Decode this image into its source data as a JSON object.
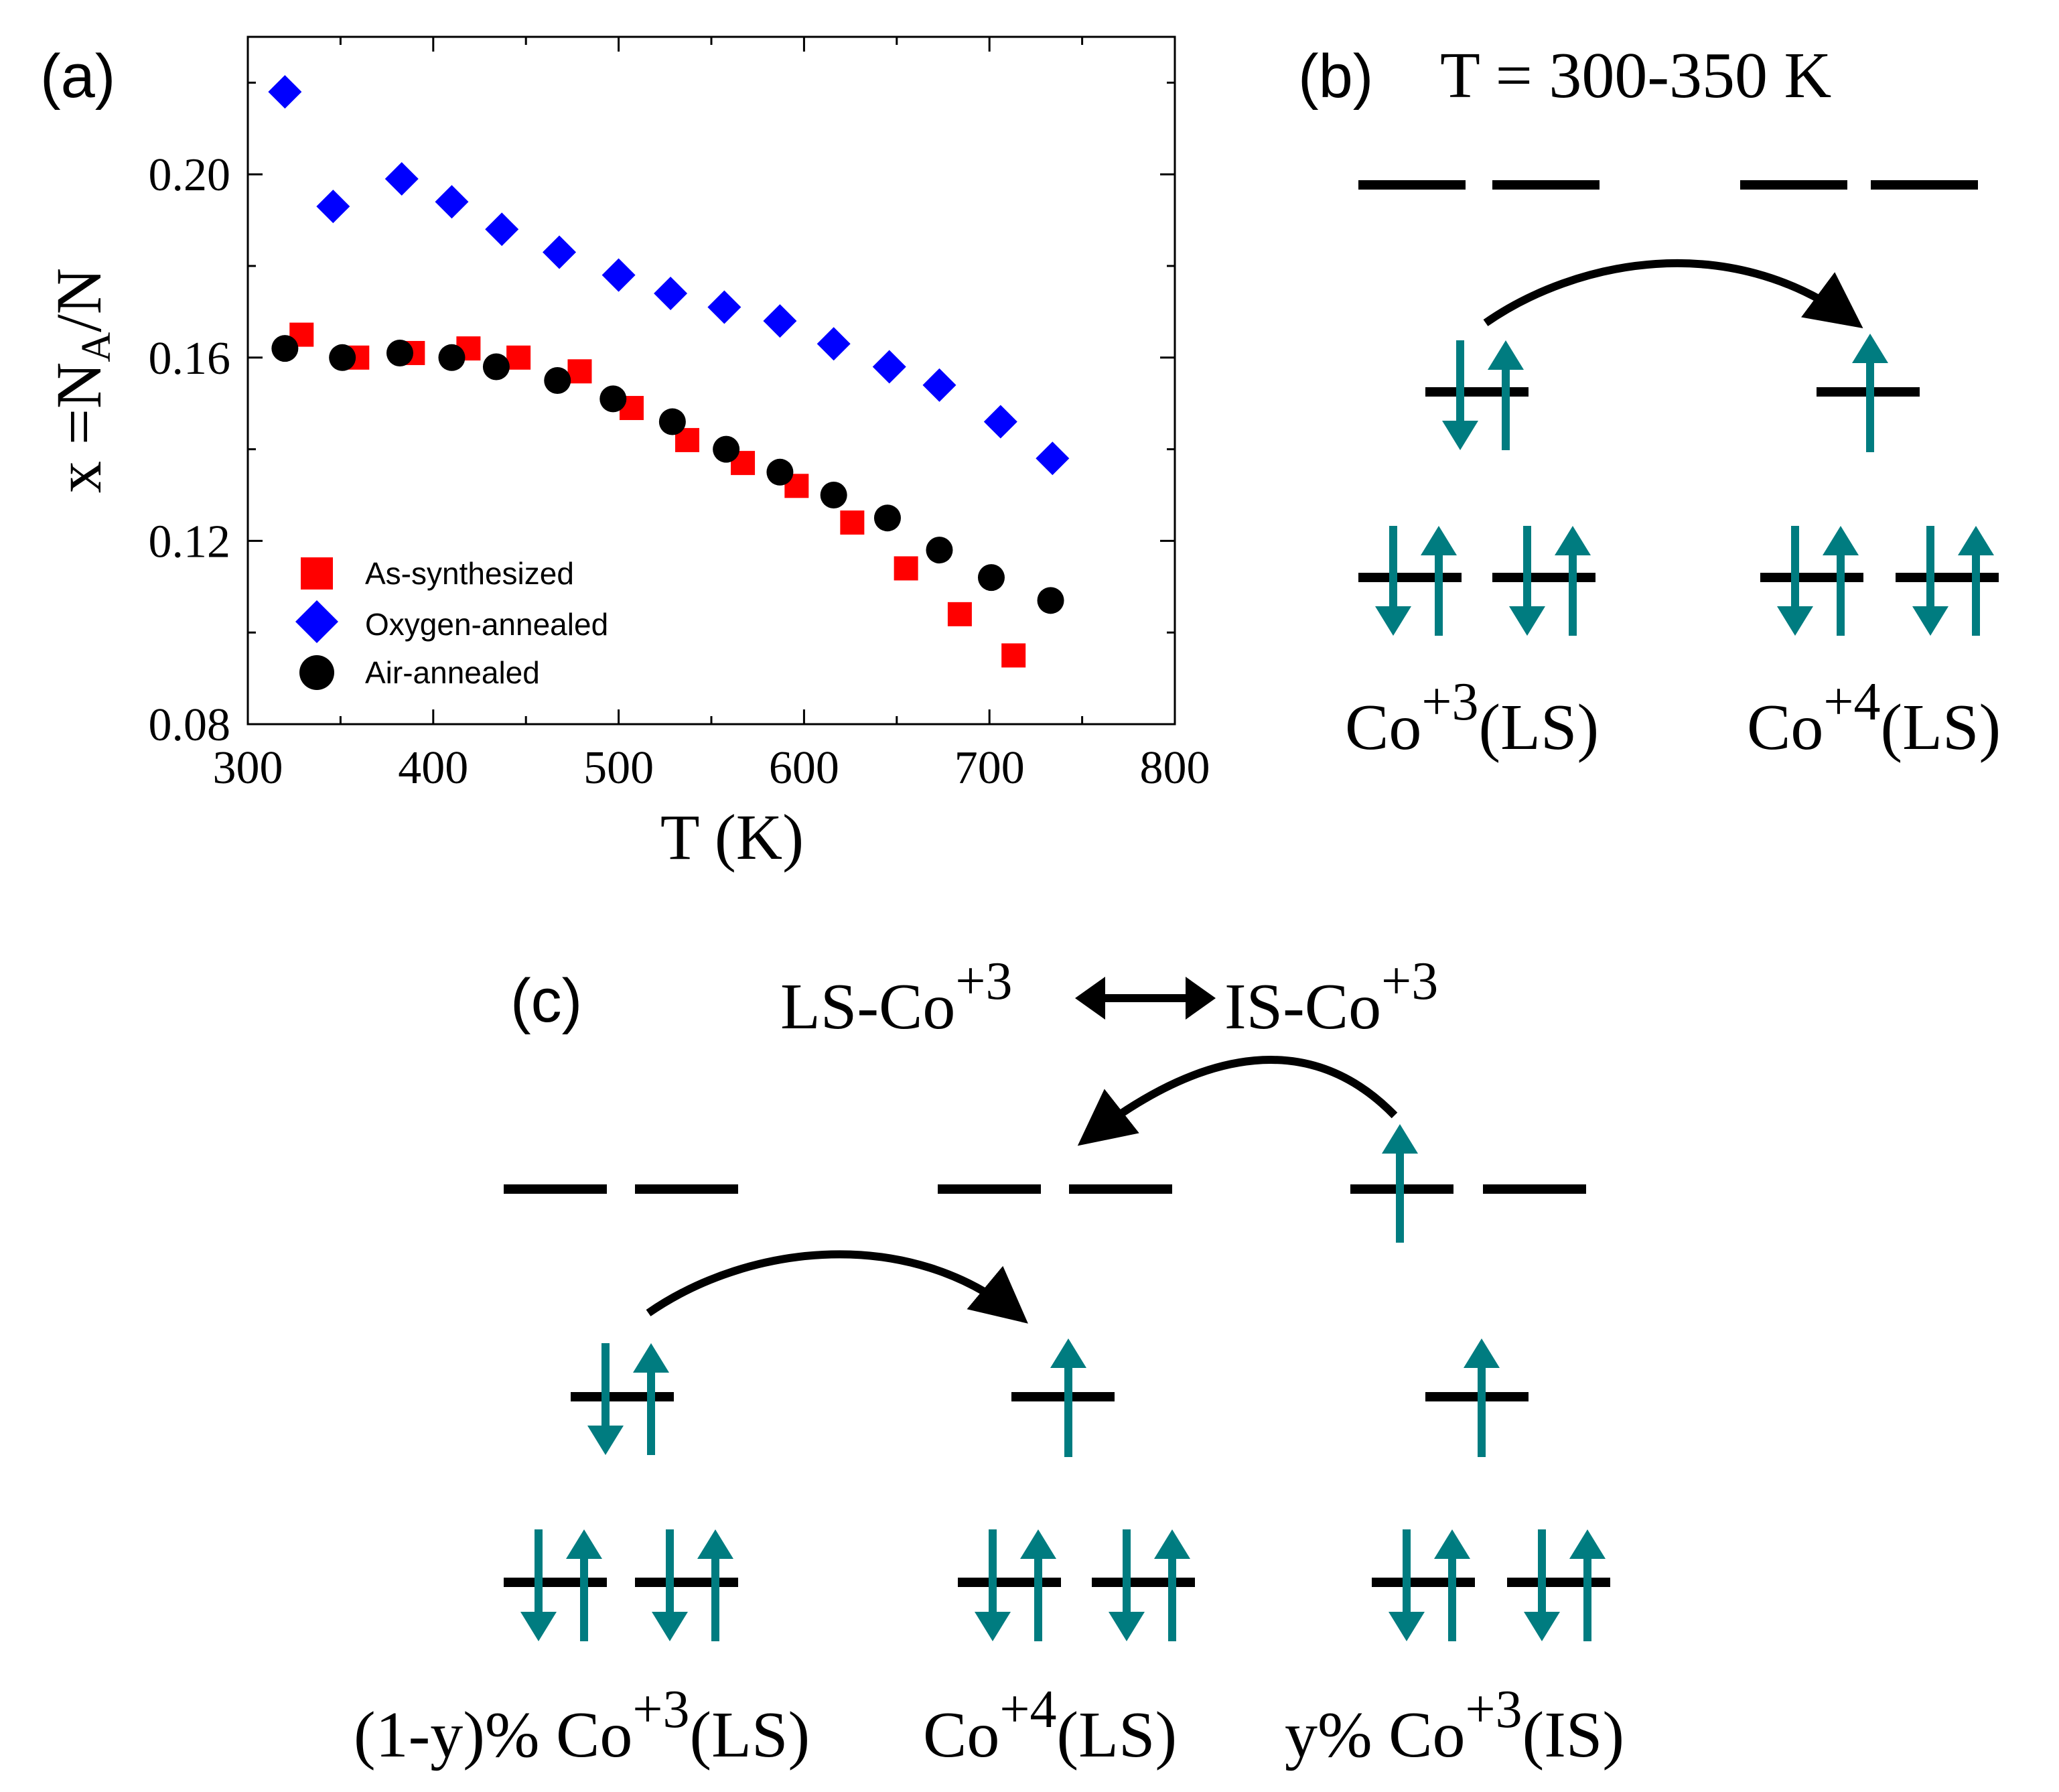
{
  "panels": {
    "a": {
      "label": "(a)"
    },
    "b": {
      "label": "(b)",
      "title": "T = 300-350 K"
    },
    "c": {
      "label": "(c)"
    }
  },
  "chart_data": {
    "type": "scatter",
    "xlabel": "T (K)",
    "ylabel_main": "x =N",
    "ylabel_sub": "A",
    "ylabel_tail": "/N",
    "xlim": [
      300,
      800
    ],
    "ylim": [
      0.08,
      0.23
    ],
    "xticks": [
      300,
      400,
      500,
      600,
      700,
      800
    ],
    "xtick_labels": [
      "300",
      "400",
      "500",
      "600",
      "700",
      "800"
    ],
    "yticks": [
      0.08,
      0.12,
      0.16,
      0.2
    ],
    "ytick_labels": [
      "0.08",
      "0.12",
      "0.16",
      "0.20"
    ],
    "legend_position": "bottom-left",
    "series": [
      {
        "name": "As-synthesized",
        "marker": "square",
        "color": "#ff0000",
        "x": [
          329,
          359,
          389,
          419,
          446,
          479,
          507,
          537,
          567,
          596,
          626,
          655,
          684,
          713
        ],
        "y": [
          0.165,
          0.16,
          0.161,
          0.162,
          0.16,
          0.157,
          0.149,
          0.142,
          0.137,
          0.132,
          0.124,
          0.114,
          0.104,
          0.095
        ]
      },
      {
        "name": "Oxygen-annealed",
        "marker": "diamond",
        "color": "#0000ff",
        "x": [
          320,
          346,
          383,
          410,
          437,
          468,
          500,
          528,
          557,
          587,
          616,
          646,
          673,
          706,
          734
        ],
        "y": [
          0.218,
          0.193,
          0.199,
          0.194,
          0.188,
          0.183,
          0.178,
          0.174,
          0.171,
          0.168,
          0.163,
          0.158,
          0.154,
          0.146,
          0.138
        ]
      },
      {
        "name": "Air-annealed",
        "marker": "circle",
        "color": "#000000",
        "x": [
          320,
          351,
          382,
          410,
          434,
          467,
          497,
          529,
          558,
          587,
          616,
          645,
          673,
          701,
          733
        ],
        "y": [
          0.162,
          0.16,
          0.161,
          0.16,
          0.158,
          0.155,
          0.151,
          0.146,
          0.14,
          0.135,
          0.13,
          0.125,
          0.118,
          0.112,
          0.107
        ]
      }
    ]
  },
  "diagram_b": {
    "left_label": {
      "base": "Co",
      "sup": "+3",
      "tail": "(LS)"
    },
    "right_label": {
      "base": "Co",
      "sup": "+4",
      "tail": "(LS)"
    }
  },
  "diagram_c": {
    "equilibrium": {
      "left_base": "LS-Co",
      "left_sup": "+3",
      "right_base": "IS-Co",
      "right_sup": "+3"
    },
    "label_1": {
      "base": "(1-y)% Co",
      "sup": "+3",
      "tail": "(LS)"
    },
    "label_2": {
      "base": "Co",
      "sup": "+4",
      "tail": "(LS)"
    },
    "label_3": {
      "base": "y% Co",
      "sup": "+3",
      "tail": "(IS)"
    }
  },
  "colors": {
    "spin": "#007c80",
    "level": "#000000",
    "arrow": "#000000"
  }
}
